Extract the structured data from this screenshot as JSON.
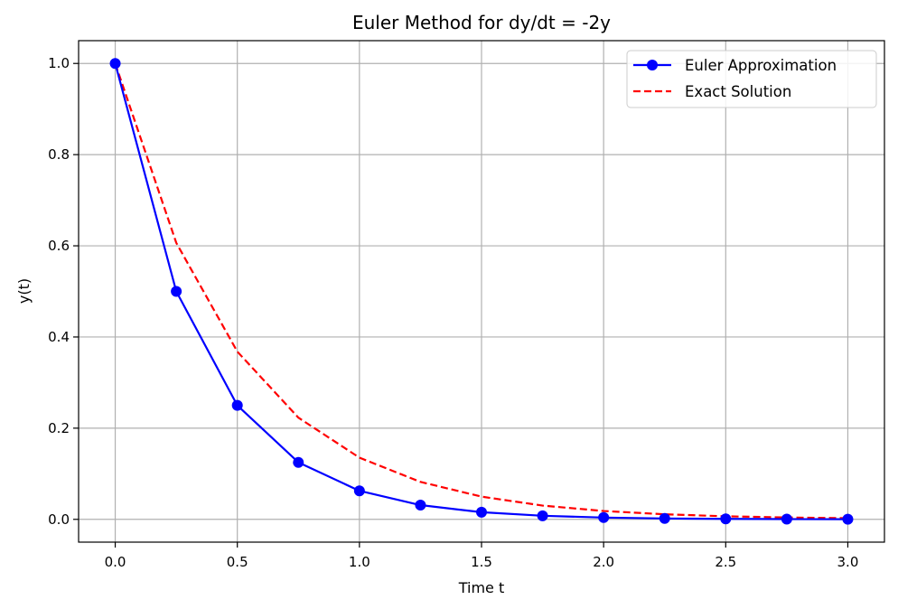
{
  "chart_data": {
    "type": "line",
    "title": "Euler Method for dy/dt = -2y",
    "xlabel": "Time t",
    "ylabel": "y(t)",
    "xlim": [
      -0.15,
      3.15
    ],
    "ylim": [
      -0.05,
      1.05
    ],
    "xticks": [
      0.0,
      0.5,
      1.0,
      1.5,
      2.0,
      2.5,
      3.0
    ],
    "xtick_labels": [
      "0.0",
      "0.5",
      "1.0",
      "1.5",
      "2.0",
      "2.5",
      "3.0"
    ],
    "yticks": [
      0.0,
      0.2,
      0.4,
      0.6,
      0.8,
      1.0
    ],
    "ytick_labels": [
      "0.0",
      "0.2",
      "0.4",
      "0.6",
      "0.8",
      "1.0"
    ],
    "grid": true,
    "legend_position": "top-right",
    "x": [
      0.0,
      0.25,
      0.5,
      0.75,
      1.0,
      1.25,
      1.5,
      1.75,
      2.0,
      2.25,
      2.5,
      2.75,
      3.0
    ],
    "series": [
      {
        "name": "Euler Approximation",
        "color": "#0000ff",
        "style": "solid",
        "marker": "circle",
        "values": [
          1.0,
          0.5,
          0.25,
          0.125,
          0.0625,
          0.03125,
          0.015625,
          0.0078125,
          0.00390625,
          0.001953,
          0.000977,
          0.000488,
          0.000244
        ]
      },
      {
        "name": "Exact Solution",
        "color": "#ff0000",
        "style": "dashed",
        "marker": "none",
        "values": [
          1.0,
          0.6065,
          0.3679,
          0.2231,
          0.1353,
          0.0821,
          0.0498,
          0.0302,
          0.0183,
          0.0111,
          0.0067,
          0.0041,
          0.0025
        ]
      }
    ]
  }
}
